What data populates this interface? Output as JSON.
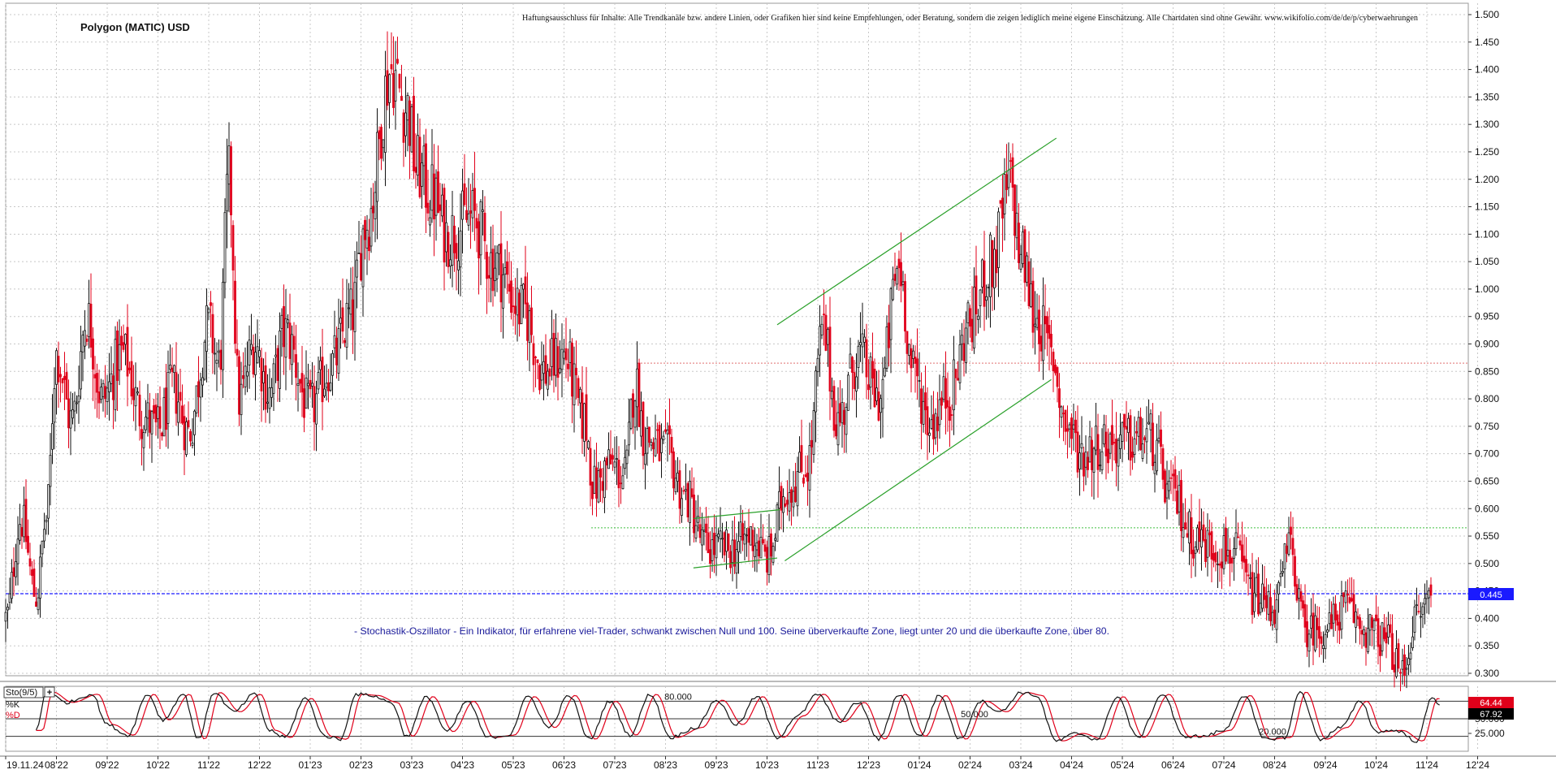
{
  "header": {
    "title": "Polygon (MATIC) USD",
    "disclaimer": "Haftungsausschluss für Inhalte: Alle Trendkanäle bzw. andere Linien, oder Grafiken hier sind keine Empfehlungen, oder Beratung, sondern die zeigen lediglich meine eigene Einschätzung. Alle Chartdaten sind ohne Gewähr.  www.wikifolio.com/de/de/p/cyberwaehrungen"
  },
  "note": "- Stochastik-Oszillator - Ein Indikator, für erfahrene viel-Trader, schwankt zwischen Null und 100. Seine überverkaufte Zone, liegt unter 20 und die überkaufte Zone, über 80.",
  "colors": {
    "up": "#111111",
    "down": "#e0001a",
    "price_line": "#1a1aff",
    "trend": "#2aa02a",
    "grid": "#c8c8c8"
  },
  "chart_data": [
    {
      "type": "candlestick",
      "title": "Polygon (MATIC) USD",
      "xlabel": "",
      "ylabel": "",
      "ylim": [
        0.28,
        1.52
      ],
      "yticks": [
        "1.500",
        "1.450",
        "1.400",
        "1.350",
        "1.300",
        "1.250",
        "1.200",
        "1.150",
        "1.100",
        "1.050",
        "1.000",
        "0.950",
        "0.900",
        "0.850",
        "0.800",
        "0.750",
        "0.700",
        "0.650",
        "0.600",
        "0.550",
        "0.500",
        "0.450",
        "0.400",
        "0.350",
        "0.300"
      ],
      "x_tick_labels": [
        "19.11.24",
        "08'22",
        "09'22",
        "10'22",
        "11'22",
        "12'22",
        "01'23",
        "02'23",
        "03'23",
        "04'23",
        "05'23",
        "06'23",
        "07'23",
        "08'23",
        "09'23",
        "10'23",
        "11'23",
        "12'23",
        "01'24",
        "02'24",
        "03'24",
        "04'24",
        "05'24",
        "06'24",
        "07'24",
        "08'24",
        "09'24",
        "10'24",
        "11'24",
        "12'24"
      ],
      "grid": true,
      "last_price": "0.445",
      "horizontal_levels": [
        {
          "value": 0.865,
          "color": "#e07070",
          "style": "dotted"
        },
        {
          "value": 0.565,
          "color": "#40c040",
          "style": "dotted"
        },
        {
          "value": 0.445,
          "color": "#1a1aff",
          "style": "dashed"
        }
      ],
      "trend_lines": [
        {
          "x1": 15.2,
          "y1": 0.935,
          "x2": 20.7,
          "y2": 1.275
        },
        {
          "x1": 15.35,
          "y1": 0.505,
          "x2": 20.6,
          "y2": 0.835
        },
        {
          "x1": 13.55,
          "y1": 0.582,
          "x2": 15.25,
          "y2": 0.598
        },
        {
          "x1": 13.55,
          "y1": 0.492,
          "x2": 15.2,
          "y2": 0.51
        }
      ],
      "anchors": [
        [
          0.0,
          0.4
        ],
        [
          0.3,
          0.58
        ],
        [
          0.6,
          0.44
        ],
        [
          0.8,
          0.58
        ],
        [
          1.0,
          0.88
        ],
        [
          1.3,
          0.76
        ],
        [
          1.6,
          0.95
        ],
        [
          1.9,
          0.8
        ],
        [
          2.3,
          0.88
        ],
        [
          2.7,
          0.77
        ],
        [
          3.0,
          0.74
        ],
        [
          3.3,
          0.82
        ],
        [
          3.6,
          0.74
        ],
        [
          4.0,
          0.93
        ],
        [
          4.2,
          0.86
        ],
        [
          4.4,
          1.2
        ],
        [
          4.6,
          0.8
        ],
        [
          4.9,
          0.9
        ],
        [
          5.2,
          0.81
        ],
        [
          5.5,
          0.92
        ],
        [
          6.0,
          0.78
        ],
        [
          6.4,
          0.86
        ],
        [
          6.8,
          0.95
        ],
        [
          7.1,
          1.12
        ],
        [
          7.6,
          1.4
        ],
        [
          7.9,
          1.33
        ],
        [
          8.1,
          1.22
        ],
        [
          8.4,
          1.17
        ],
        [
          8.7,
          1.1
        ],
        [
          9.2,
          1.13
        ],
        [
          9.6,
          1.05
        ],
        [
          10.2,
          0.96
        ],
        [
          10.6,
          0.85
        ],
        [
          11.0,
          0.88
        ],
        [
          11.4,
          0.76
        ],
        [
          11.6,
          0.64
        ],
        [
          11.9,
          0.68
        ],
        [
          12.2,
          0.66
        ],
        [
          12.4,
          0.83
        ],
        [
          12.6,
          0.73
        ],
        [
          13.0,
          0.7
        ],
        [
          13.4,
          0.62
        ],
        [
          13.8,
          0.53
        ],
        [
          14.3,
          0.525
        ],
        [
          14.7,
          0.55
        ],
        [
          15.0,
          0.51
        ],
        [
          15.4,
          0.64
        ],
        [
          15.8,
          0.68
        ],
        [
          16.1,
          0.92
        ],
        [
          16.4,
          0.76
        ],
        [
          16.8,
          0.88
        ],
        [
          17.2,
          0.8
        ],
        [
          17.6,
          1.04
        ],
        [
          17.9,
          0.84
        ],
        [
          18.2,
          0.76
        ],
        [
          18.6,
          0.81
        ],
        [
          19.0,
          0.94
        ],
        [
          19.4,
          1.04
        ],
        [
          19.8,
          1.19
        ],
        [
          20.0,
          1.06
        ],
        [
          20.3,
          0.95
        ],
        [
          20.6,
          0.88
        ],
        [
          20.9,
          0.75
        ],
        [
          21.2,
          0.7
        ],
        [
          21.6,
          0.72
        ],
        [
          22.0,
          0.72
        ],
        [
          22.5,
          0.73
        ],
        [
          23.0,
          0.62
        ],
        [
          23.4,
          0.55
        ],
        [
          23.8,
          0.53
        ],
        [
          24.2,
          0.52
        ],
        [
          24.6,
          0.44
        ],
        [
          25.0,
          0.42
        ],
        [
          25.3,
          0.53
        ],
        [
          25.6,
          0.38
        ],
        [
          26.0,
          0.38
        ],
        [
          26.4,
          0.42
        ],
        [
          26.8,
          0.38
        ],
        [
          27.2,
          0.36
        ],
        [
          27.5,
          0.3
        ],
        [
          27.8,
          0.4
        ],
        [
          28.1,
          0.45
        ]
      ]
    },
    {
      "type": "line",
      "title": "Sto(9/5)",
      "series": [
        {
          "name": "%K",
          "color": "#111111"
        },
        {
          "name": "%D",
          "color": "#e0001a"
        }
      ],
      "ylim": [
        0,
        100
      ],
      "levels": [
        80,
        50,
        20
      ],
      "level_labels": [
        "80.000",
        "50.000",
        "20.000"
      ],
      "axis_labels": [
        "75.000",
        "50.000",
        "25.000"
      ],
      "last_values": {
        "K": "67.92",
        "D": "64.44"
      },
      "k_anchors": [
        [
          0.6,
          30
        ],
        [
          0.8,
          96
        ],
        [
          1.2,
          78
        ],
        [
          1.7,
          92
        ],
        [
          2.0,
          40
        ],
        [
          2.4,
          22
        ],
        [
          2.8,
          92
        ],
        [
          3.1,
          48
        ],
        [
          3.5,
          92
        ],
        [
          3.8,
          15
        ],
        [
          4.1,
          95
        ],
        [
          4.5,
          62
        ],
        [
          4.9,
          92
        ],
        [
          5.2,
          30
        ],
        [
          5.5,
          18
        ],
        [
          5.9,
          85
        ],
        [
          6.3,
          20
        ],
        [
          6.6,
          15
        ],
        [
          6.9,
          92
        ],
        [
          7.2,
          90
        ],
        [
          7.6,
          78
        ],
        [
          7.9,
          20
        ],
        [
          8.3,
          88
        ],
        [
          8.7,
          28
        ],
        [
          9.1,
          80
        ],
        [
          9.5,
          18
        ],
        [
          9.9,
          22
        ],
        [
          10.3,
          88
        ],
        [
          10.7,
          35
        ],
        [
          11.1,
          90
        ],
        [
          11.5,
          15
        ],
        [
          11.9,
          80
        ],
        [
          12.3,
          22
        ],
        [
          12.7,
          92
        ],
        [
          13.1,
          18
        ],
        [
          13.6,
          35
        ],
        [
          14.0,
          82
        ],
        [
          14.4,
          40
        ],
        [
          14.8,
          88
        ],
        [
          15.2,
          18
        ],
        [
          15.6,
          55
        ],
        [
          16.0,
          92
        ],
        [
          16.4,
          45
        ],
        [
          16.8,
          78
        ],
        [
          17.2,
          15
        ],
        [
          17.6,
          92
        ],
        [
          18.0,
          20
        ],
        [
          18.4,
          90
        ],
        [
          18.8,
          15
        ],
        [
          19.2,
          80
        ],
        [
          19.6,
          62
        ],
        [
          20.0,
          95
        ],
        [
          20.3,
          90
        ],
        [
          20.7,
          12
        ],
        [
          21.1,
          25
        ],
        [
          21.5,
          15
        ],
        [
          21.9,
          88
        ],
        [
          22.3,
          18
        ],
        [
          22.8,
          92
        ],
        [
          23.2,
          20
        ],
        [
          23.6,
          20
        ],
        [
          24.0,
          30
        ],
        [
          24.4,
          90
        ],
        [
          24.8,
          15
        ],
        [
          25.2,
          18
        ],
        [
          25.5,
          96
        ],
        [
          25.9,
          15
        ],
        [
          26.3,
          35
        ],
        [
          26.7,
          80
        ],
        [
          27.0,
          28
        ],
        [
          27.4,
          30
        ],
        [
          27.8,
          12
        ],
        [
          28.1,
          85
        ],
        [
          28.3,
          72
        ]
      ]
    }
  ]
}
